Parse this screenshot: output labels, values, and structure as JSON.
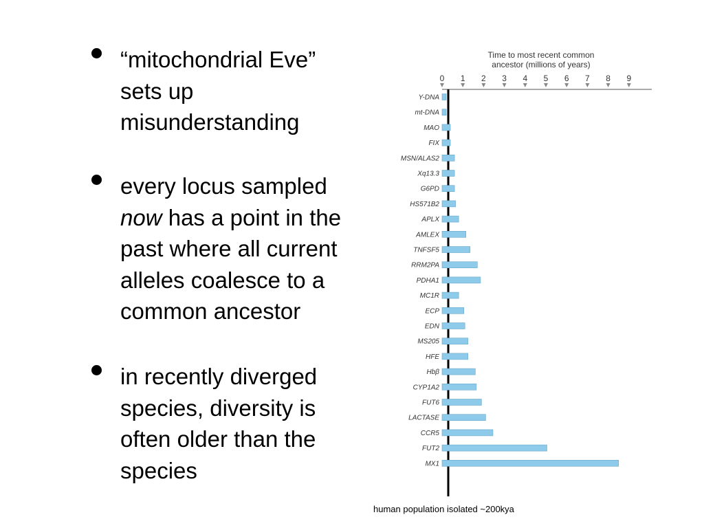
{
  "bullets": {
    "b1": {
      "line1": "“mitochondrial Eve”",
      "line2": "sets up",
      "line3": "misunderstanding"
    },
    "b2": {
      "line1": "every locus sampled",
      "line2_em": "now",
      "line2_rest": " has a point in the",
      "line3": "past where all current",
      "line4": "alleles coalesce to a",
      "line5": "common ancestor"
    },
    "b3": {
      "line1": "in recently diverged",
      "line2": "species, diversity is",
      "line3": "often older than the",
      "line4": "species"
    }
  },
  "chart_data": {
    "type": "bar",
    "orientation": "horizontal",
    "title": "Time to most recent common ancestor (millions of years)",
    "title_lines": [
      "Time to most recent common",
      "ancestor (millions of years)"
    ],
    "xlim": [
      0,
      10
    ],
    "xticks": [
      0,
      1,
      2,
      3,
      4,
      5,
      6,
      7,
      8,
      9
    ],
    "categories": [
      "Y-DNA",
      "mt-DNA",
      "MAO",
      "FIX",
      "MSN/ALAS2",
      "Xq13.3",
      "G6PD",
      "HS571B2",
      "APLX",
      "AMLEX",
      "TNFSF5",
      "RRM2PA",
      "PDHA1",
      "MC1R",
      "ECP",
      "EDN",
      "MS205",
      "HFE",
      "Hbβ",
      "CYP1A2",
      "FUT6",
      "LACTASE",
      "CCR5",
      "FUT2",
      "MX1"
    ],
    "values": [
      0.2,
      0.2,
      0.4,
      0.4,
      0.6,
      0.6,
      0.6,
      0.65,
      0.8,
      1.15,
      1.35,
      1.7,
      1.85,
      0.8,
      1.05,
      1.1,
      1.25,
      1.25,
      1.6,
      1.65,
      1.9,
      2.1,
      2.45,
      5.05,
      8.5
    ],
    "bar_color": "#8ecbea",
    "bar_edge": "#6aa8cc",
    "grid": false,
    "marker": "human population isolated ~200kya"
  }
}
